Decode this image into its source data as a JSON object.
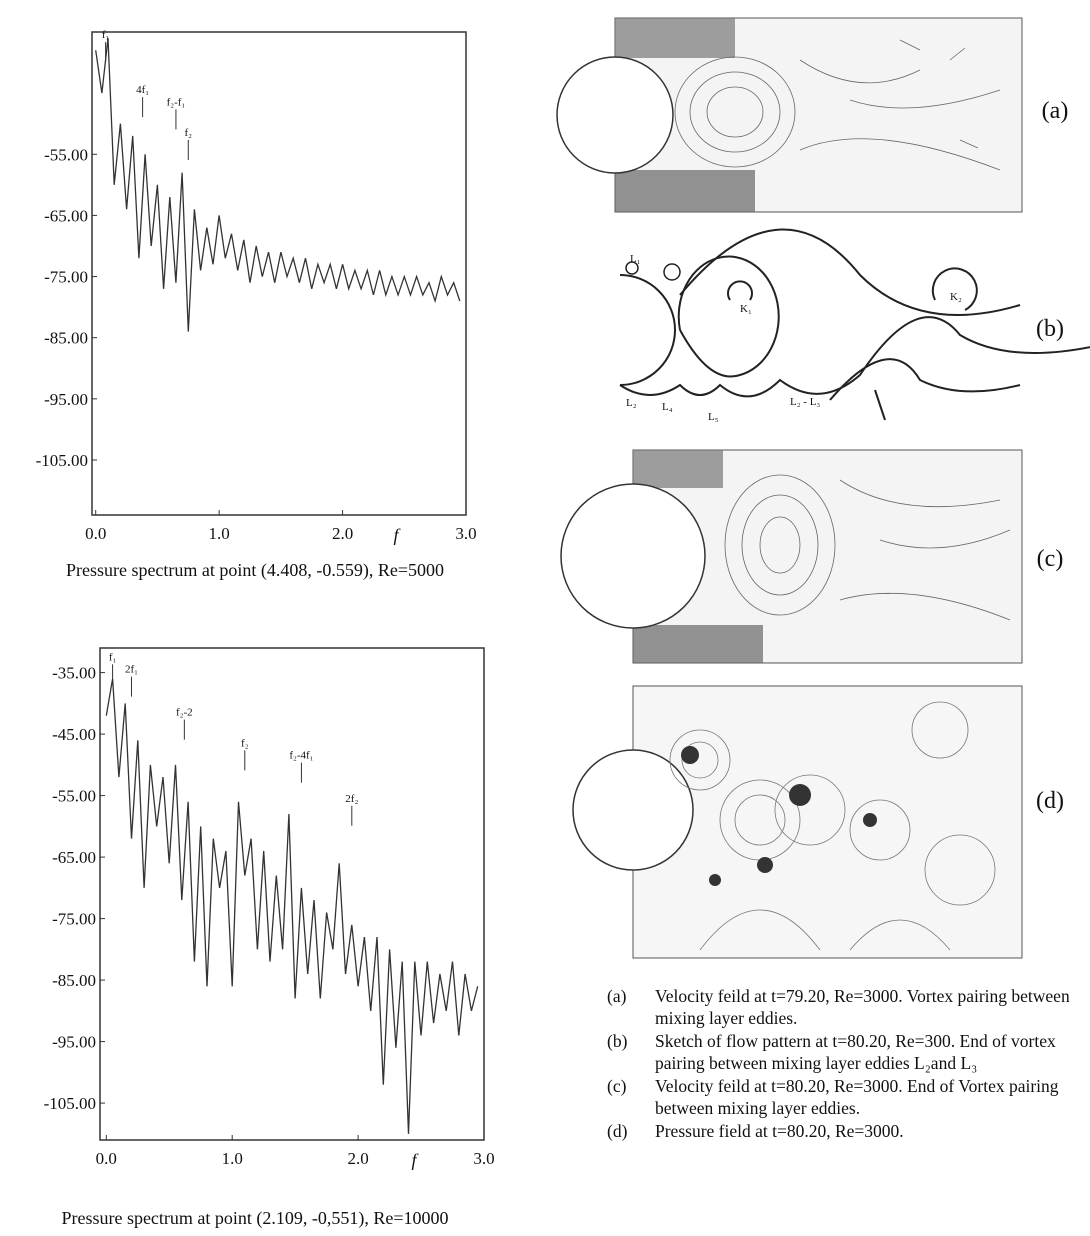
{
  "charts": [
    {
      "type": "line",
      "caption": "Pressure spectrum at point (4.408, -0.559), Re=5000",
      "x_label": "f",
      "xlim": [
        -0.03,
        3.0
      ],
      "ylim": [
        -114,
        -35
      ],
      "xticks": [
        {
          "value": 0,
          "label": "0.0"
        },
        {
          "value": 1,
          "label": "1.0"
        },
        {
          "value": 2,
          "label": "2.0"
        },
        {
          "value": 3,
          "label": "3.0"
        }
      ],
      "yticks": [
        {
          "value": -55,
          "label": "-55.00"
        },
        {
          "value": -65,
          "label": "-65.00"
        },
        {
          "value": -75,
          "label": "-75.00"
        },
        {
          "value": -85,
          "label": "-85.00"
        },
        {
          "value": -95,
          "label": "-95.00"
        },
        {
          "value": -105,
          "label": "-105.00"
        }
      ],
      "color": "#333333",
      "x": [
        0,
        0.05,
        0.1,
        0.15,
        0.2,
        0.25,
        0.3,
        0.35,
        0.4,
        0.45,
        0.5,
        0.55,
        0.6,
        0.65,
        0.7,
        0.75,
        0.8,
        0.85,
        0.9,
        0.95,
        1.0,
        1.05,
        1.1,
        1.15,
        1.2,
        1.25,
        1.3,
        1.35,
        1.4,
        1.45,
        1.5,
        1.55,
        1.6,
        1.65,
        1.7,
        1.75,
        1.8,
        1.85,
        1.9,
        1.95,
        2.0,
        2.05,
        2.1,
        2.15,
        2.2,
        2.25,
        2.3,
        2.35,
        2.4,
        2.45,
        2.5,
        2.55,
        2.6,
        2.65,
        2.7,
        2.75,
        2.8,
        2.85,
        2.9,
        2.95
      ],
      "values": [
        -38,
        -45,
        -36,
        -60,
        -50,
        -64,
        -52,
        -72,
        -55,
        -70,
        -60,
        -77,
        -62,
        -76,
        -58,
        -84,
        -64,
        -74,
        -67,
        -73,
        -65,
        -72,
        -68,
        -74,
        -69,
        -76,
        -70,
        -75,
        -71,
        -76,
        -71,
        -75,
        -72,
        -76,
        -72,
        -77,
        -73,
        -76,
        -73,
        -77,
        -73,
        -77,
        -74,
        -77,
        -74,
        -78,
        -74,
        -78,
        -75,
        -78,
        -75,
        -78,
        -75,
        -78,
        -76,
        -79,
        -75,
        -78,
        -76,
        -79
      ],
      "annotations": [
        {
          "text": "f₁",
          "x": 0.08,
          "y": -36
        },
        {
          "text": "4f₁",
          "x": 0.38,
          "y": -45
        },
        {
          "text": "f₂-f₁",
          "x": 0.65,
          "y": -47
        },
        {
          "text": "f₂",
          "x": 0.75,
          "y": -52
        }
      ]
    },
    {
      "type": "line",
      "caption": "Pressure spectrum at point (2.109, -0,551), Re=10000",
      "x_label": "f",
      "xlim": [
        -0.05,
        3.0
      ],
      "ylim": [
        -111,
        -31
      ],
      "xticks": [
        {
          "value": 0,
          "label": "0.0"
        },
        {
          "value": 1,
          "label": "1.0"
        },
        {
          "value": 2,
          "label": "2.0"
        },
        {
          "value": 3,
          "label": "3.0"
        }
      ],
      "yticks": [
        {
          "value": -35,
          "label": "-35.00"
        },
        {
          "value": -45,
          "label": "-45.00"
        },
        {
          "value": -55,
          "label": "-55.00"
        },
        {
          "value": -65,
          "label": "-65.00"
        },
        {
          "value": -75,
          "label": "-75.00"
        },
        {
          "value": -85,
          "label": "-85.00"
        },
        {
          "value": -95,
          "label": "-95.00"
        },
        {
          "value": -105,
          "label": "-105.00"
        }
      ],
      "color": "#333333",
      "x": [
        0,
        0.05,
        0.1,
        0.15,
        0.2,
        0.25,
        0.3,
        0.35,
        0.4,
        0.45,
        0.5,
        0.55,
        0.6,
        0.65,
        0.7,
        0.75,
        0.8,
        0.85,
        0.9,
        0.95,
        1.0,
        1.05,
        1.1,
        1.15,
        1.2,
        1.25,
        1.3,
        1.35,
        1.4,
        1.45,
        1.5,
        1.55,
        1.6,
        1.65,
        1.7,
        1.75,
        1.8,
        1.85,
        1.9,
        1.95,
        2.0,
        2.05,
        2.1,
        2.15,
        2.2,
        2.25,
        2.3,
        2.35,
        2.4,
        2.45,
        2.5,
        2.55,
        2.6,
        2.65,
        2.7,
        2.75,
        2.8,
        2.85,
        2.9,
        2.95
      ],
      "values": [
        -42,
        -36,
        -52,
        -40,
        -62,
        -46,
        -70,
        -50,
        -60,
        -52,
        -66,
        -50,
        -72,
        -56,
        -82,
        -60,
        -86,
        -62,
        -70,
        -64,
        -86,
        -56,
        -68,
        -62,
        -80,
        -64,
        -82,
        -68,
        -80,
        -58,
        -88,
        -70,
        -84,
        -72,
        -88,
        -74,
        -80,
        -66,
        -84,
        -76,
        -86,
        -78,
        -90,
        -78,
        -102,
        -80,
        -96,
        -82,
        -110,
        -82,
        -94,
        -82,
        -92,
        -84,
        -90,
        -82,
        -94,
        -84,
        -90,
        -86
      ],
      "annotations": [
        {
          "text": "f₁",
          "x": 0.05,
          "y": -33
        },
        {
          "text": "2f₁",
          "x": 0.2,
          "y": -35
        },
        {
          "text": "f₂-2",
          "x": 0.62,
          "y": -42
        },
        {
          "text": "f₂",
          "x": 1.1,
          "y": -47
        },
        {
          "text": "f₂-4f₁",
          "x": 1.55,
          "y": -49
        },
        {
          "text": "2f₂",
          "x": 1.95,
          "y": -56
        }
      ]
    }
  ],
  "panels": {
    "labels": [
      "(a)",
      "(b)",
      "(c)",
      "(d)"
    ],
    "sketch_labels": [
      "L₁",
      "K₁",
      "K₂",
      "L₂",
      "L₄",
      "L₅",
      "L₂ - L₃"
    ]
  },
  "legend": [
    {
      "label": "(a)",
      "text": "Velocity feild at t=79.20, Re=3000. Vortex pairing between mixing layer eddies."
    },
    {
      "label": "(b)",
      "text": "Sketch of flow pattern at t=80.20, Re=300. End of vortex pairing between mixing layer eddies L₂and L₃"
    },
    {
      "label": "(c)",
      "text": "Velocity feild at t=80.20, Re=3000. End of Vortex pairing between mixing layer eddies."
    },
    {
      "label": "(d)",
      "text": "Pressure field at t=80.20, Re=3000."
    }
  ]
}
